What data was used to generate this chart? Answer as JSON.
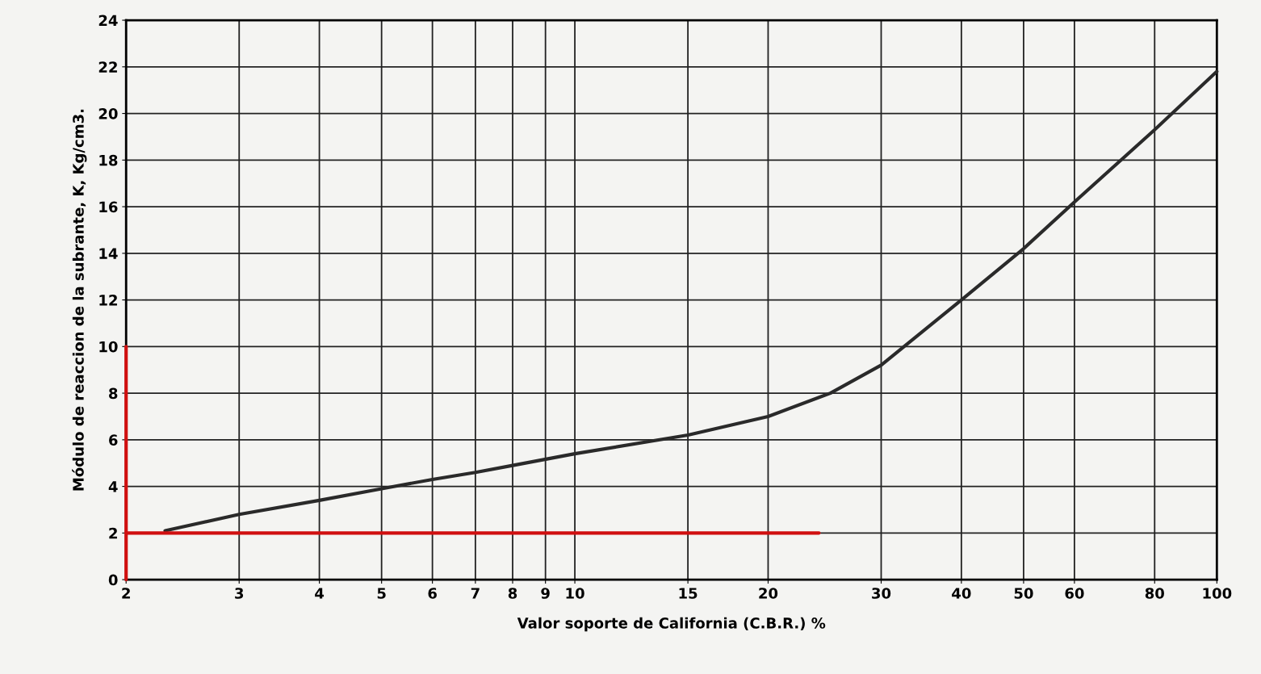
{
  "chart_data": {
    "type": "line",
    "xlabel": "Valor soporte de California (C.B.R.) %",
    "ylabel": "Módulo de reaccion de la subrante, K, Kg/cm3.",
    "log": "x",
    "xlim": [
      2,
      100
    ],
    "ylim": [
      0,
      24
    ],
    "xticks": [
      2,
      3,
      4,
      5,
      6,
      7,
      8,
      9,
      10,
      15,
      20,
      30,
      40,
      50,
      60,
      80,
      100
    ],
    "yticks": [
      0,
      2,
      4,
      6,
      8,
      10,
      12,
      14,
      16,
      18,
      20,
      22,
      24
    ],
    "grid": true,
    "series": [
      {
        "color": "#2a2a2a",
        "x": [
          2.3,
          3,
          4,
          5,
          6,
          7,
          8,
          10,
          15,
          20,
          25,
          30,
          40,
          50,
          60,
          80,
          100
        ],
        "values": [
          2.1,
          2.8,
          3.4,
          3.9,
          4.3,
          4.6,
          4.9,
          5.4,
          6.2,
          7.0,
          8.0,
          9.2,
          12.0,
          14.2,
          16.2,
          19.3,
          21.8
        ]
      },
      {
        "color": "#d01010",
        "x": [
          2,
          24
        ],
        "values": [
          2,
          2
        ]
      },
      {
        "color": "#d01010",
        "x": [
          2,
          2
        ],
        "values": [
          0,
          10
        ]
      }
    ]
  }
}
